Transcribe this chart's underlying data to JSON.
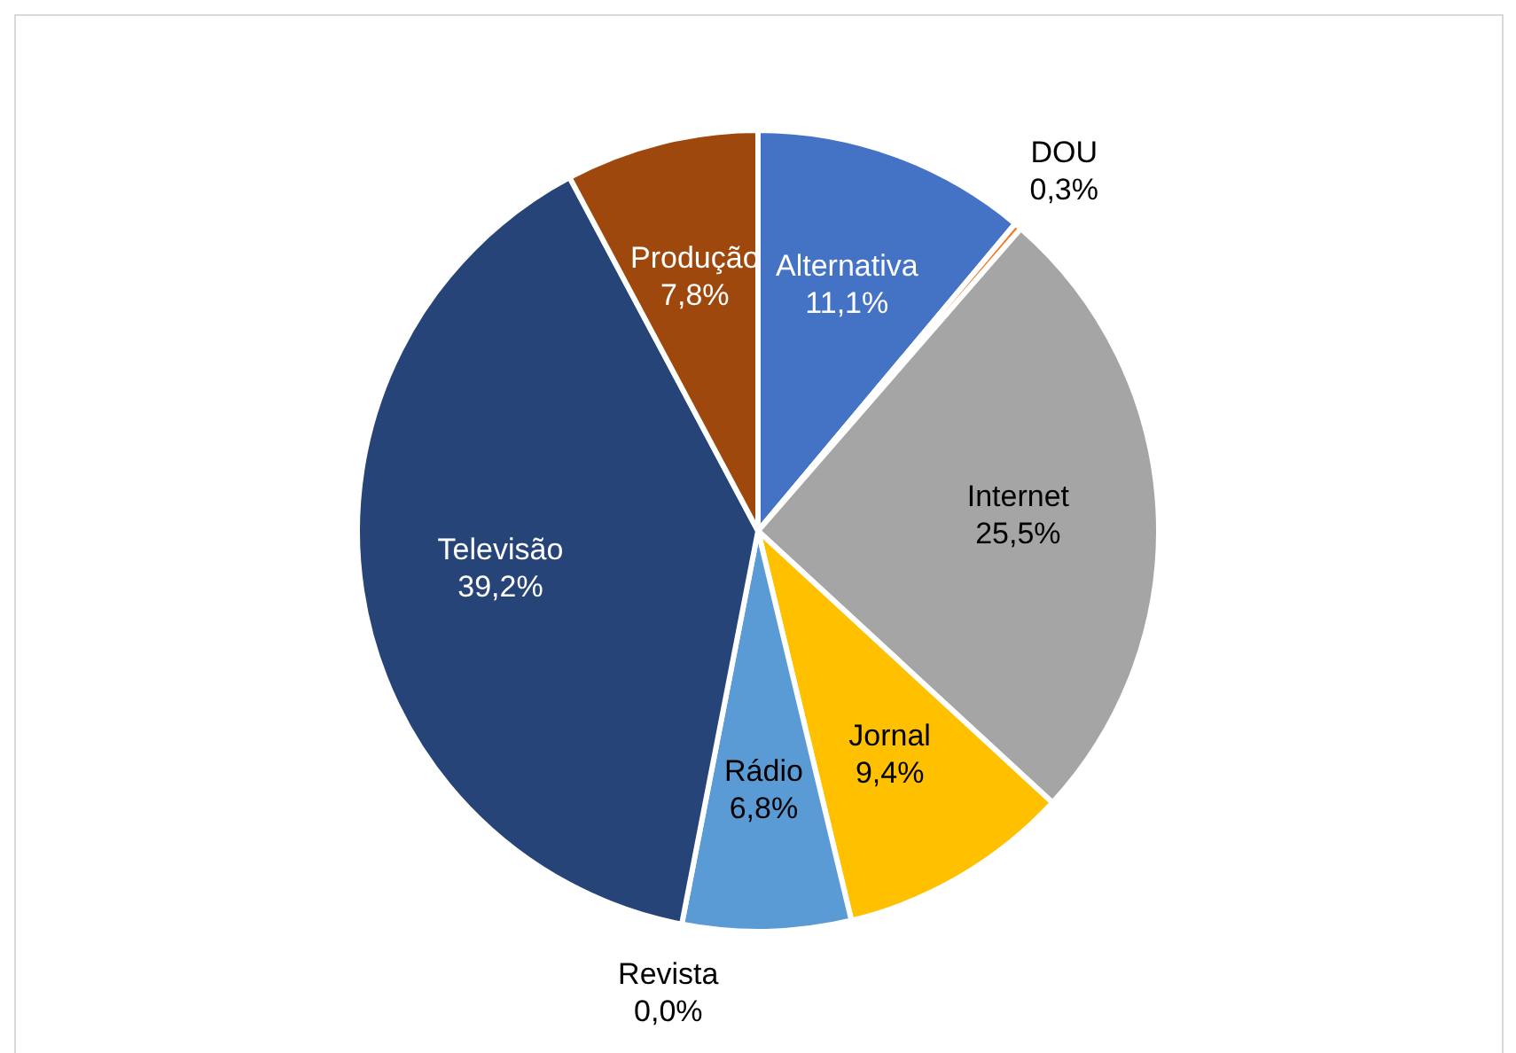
{
  "chart_data": {
    "type": "pie",
    "categories": [
      "Alternativa",
      "DOU",
      "Internet",
      "Jornal",
      "Rádio",
      "Revista",
      "Televisão",
      "Produção"
    ],
    "values": [
      11.1,
      0.3,
      25.5,
      9.4,
      6.8,
      0.0,
      39.2,
      7.8
    ],
    "colors": [
      "#4472c4",
      "#ed7d31",
      "#a5a5a5",
      "#ffc000",
      "#5b9bd5",
      "#70ad47",
      "#264478",
      "#9e480e"
    ],
    "value_labels": [
      "11,1%",
      "0,3%",
      "25,5%",
      "9,4%",
      "6,8%",
      "0,0%",
      "39,2%",
      "7,8%"
    ],
    "legend": false
  }
}
